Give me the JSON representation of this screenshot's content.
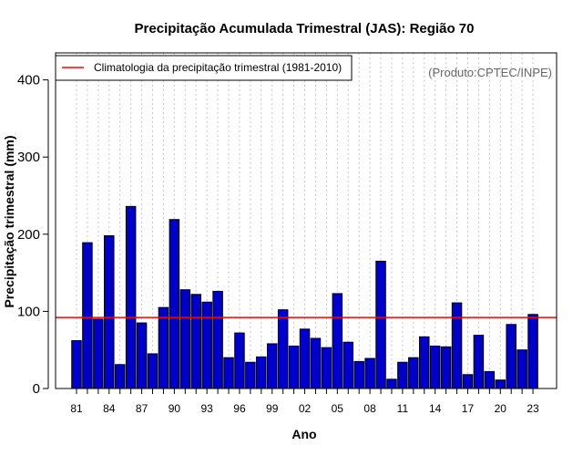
{
  "chart_data": {
    "type": "bar",
    "title": "Precipitação Acumulada Trimestral (JAS): Região 70",
    "xlabel": "Ano",
    "ylabel": "Precipitação trimestral (mm)",
    "ylim": [
      0,
      435
    ],
    "yticks": [
      0,
      100,
      200,
      300,
      400
    ],
    "grid": "vertical dotted lines per year",
    "categories": [
      "1981",
      "1982",
      "1983",
      "1984",
      "1985",
      "1986",
      "1987",
      "1988",
      "1989",
      "1990",
      "1991",
      "1992",
      "1993",
      "1994",
      "1995",
      "1996",
      "1997",
      "1998",
      "1999",
      "2000",
      "2001",
      "2002",
      "2003",
      "2004",
      "2005",
      "2006",
      "2007",
      "2008",
      "2009",
      "2010",
      "2011",
      "2012",
      "2013",
      "2014",
      "2015",
      "2016",
      "2017",
      "2018",
      "2019",
      "2020",
      "2021",
      "2022",
      "2023"
    ],
    "xtick_labels": [
      "81",
      "84",
      "87",
      "90",
      "93",
      "96",
      "99",
      "02",
      "05",
      "08",
      "11",
      "14",
      "17",
      "20",
      "23"
    ],
    "values": [
      62,
      189,
      90,
      198,
      31,
      236,
      85,
      45,
      105,
      219,
      128,
      122,
      112,
      126,
      40,
      72,
      34,
      41,
      58,
      102,
      55,
      77,
      65,
      53,
      123,
      60,
      35,
      39,
      165,
      12,
      34,
      40,
      67,
      55,
      54,
      111,
      18,
      69,
      22,
      11,
      83,
      50,
      96
    ],
    "climatology": 92,
    "bar_color": "#0000cc",
    "climatology_color": "#ff0000",
    "legend": {
      "position": "top-left",
      "entries": [
        "Climatologia da precipitação trimestral (1981-2010)"
      ]
    },
    "credit": "(Produto:CPTEC/INPE)"
  }
}
